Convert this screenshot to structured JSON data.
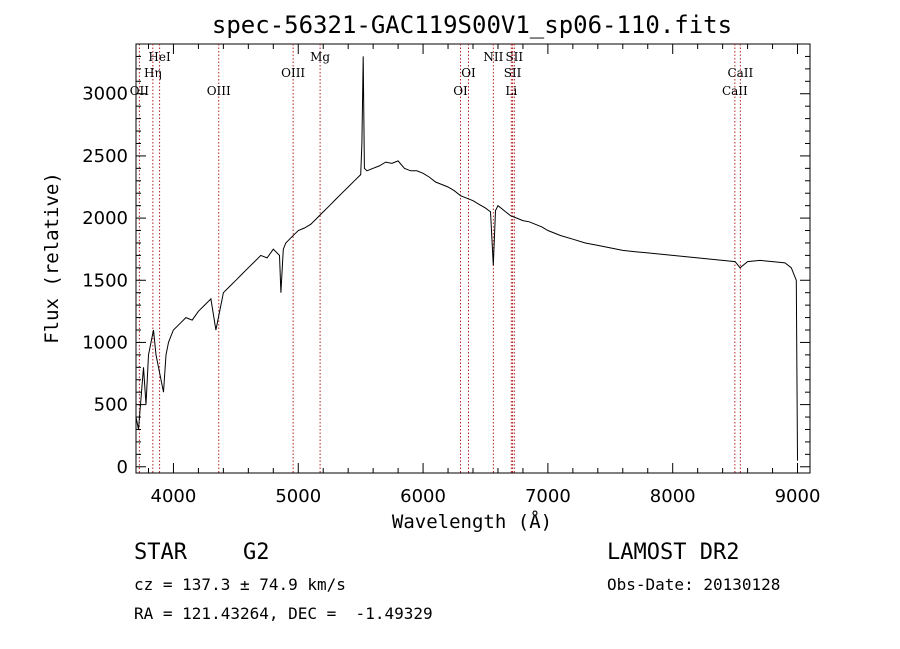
{
  "chart_data": {
    "type": "line",
    "title": "spec-56321-GAC119S00V1_sp06-110.fits",
    "xlabel": "Wavelength (Å)",
    "ylabel": "Flux (relative)",
    "xlim": [
      3700,
      9100
    ],
    "ylim": [
      -50,
      3400
    ],
    "x_ticks": [
      4000,
      5000,
      6000,
      7000,
      8000,
      9000
    ],
    "y_ticks": [
      0,
      500,
      1000,
      1500,
      2000,
      2500,
      3000
    ],
    "grid": false,
    "legend": "none",
    "series": [
      {
        "x": [
          3700,
          3720,
          3740,
          3760,
          3780,
          3800,
          3820,
          3840,
          3860,
          3880,
          3900,
          3920,
          3940,
          3960,
          3980,
          4000,
          4050,
          4100,
          4150,
          4200,
          4250,
          4300,
          4340,
          4380,
          4400,
          4450,
          4500,
          4550,
          4600,
          4650,
          4700,
          4750,
          4800,
          4850,
          4861,
          4880,
          4900,
          4950,
          5000,
          5050,
          5100,
          5150,
          5200,
          5250,
          5300,
          5350,
          5400,
          5450,
          5500,
          5510,
          5520,
          5530,
          5550,
          5600,
          5650,
          5700,
          5750,
          5800,
          5850,
          5900,
          5950,
          6000,
          6050,
          6100,
          6150,
          6200,
          6250,
          6300,
          6350,
          6400,
          6450,
          6500,
          6540,
          6563,
          6580,
          6600,
          6650,
          6700,
          6750,
          6800,
          6850,
          6900,
          6950,
          7000,
          7100,
          7200,
          7300,
          7400,
          7500,
          7600,
          7700,
          7800,
          7900,
          8000,
          8100,
          8200,
          8300,
          8400,
          8500,
          8540,
          8600,
          8700,
          8800,
          8900,
          8950,
          8990,
          9000
        ],
        "y": [
          400,
          300,
          550,
          800,
          500,
          900,
          1000,
          1100,
          900,
          800,
          700,
          600,
          900,
          1000,
          1050,
          1100,
          1150,
          1200,
          1180,
          1250,
          1300,
          1350,
          1100,
          1300,
          1400,
          1450,
          1500,
          1550,
          1600,
          1650,
          1700,
          1680,
          1750,
          1700,
          1400,
          1750,
          1800,
          1850,
          1900,
          1920,
          1950,
          2000,
          2050,
          2100,
          2150,
          2200,
          2250,
          2300,
          2350,
          2600,
          3300,
          2400,
          2380,
          2400,
          2420,
          2450,
          2440,
          2460,
          2400,
          2380,
          2380,
          2360,
          2330,
          2290,
          2270,
          2250,
          2220,
          2180,
          2160,
          2140,
          2110,
          2080,
          2050,
          1620,
          2060,
          2100,
          2060,
          2020,
          2000,
          1980,
          1970,
          1950,
          1930,
          1900,
          1860,
          1830,
          1800,
          1780,
          1760,
          1740,
          1730,
          1720,
          1710,
          1700,
          1690,
          1680,
          1670,
          1660,
          1650,
          1600,
          1650,
          1660,
          1650,
          1640,
          1600,
          1500,
          50
        ]
      }
    ],
    "reference_lines": [
      {
        "x": 3727,
        "label": "OII",
        "row": 3
      },
      {
        "x": 3835,
        "label": "Hη",
        "row": 2
      },
      {
        "x": 3889,
        "label": "HeI",
        "row": 1
      },
      {
        "x": 4363,
        "label": "OIII",
        "row": 3
      },
      {
        "x": 4959,
        "label": "OIII",
        "row": 2
      },
      {
        "x": 5175,
        "label": "Mg",
        "row": 1
      },
      {
        "x": 6300,
        "label": "OI",
        "row": 3
      },
      {
        "x": 6364,
        "label": "OI",
        "row": 2
      },
      {
        "x": 6563,
        "label": "NII",
        "row": 1
      },
      {
        "x": 6707,
        "label": "Li",
        "row": 3
      },
      {
        "x": 6717,
        "label": "SII",
        "row": 2
      },
      {
        "x": 6731,
        "label": "SII",
        "row": 1
      },
      {
        "x": 8498,
        "label": "CaII",
        "row": 3
      },
      {
        "x": 8542,
        "label": "CaII",
        "row": 2
      }
    ]
  },
  "info": {
    "object_class": "STAR",
    "subclass": "G2",
    "survey": "LAMOST DR2",
    "redshift": "cz = 137.3 ± 74.9 km/s",
    "obs_date": "Obs-Date: 20130128",
    "coordinates": "RA = 121.43264, DEC =  -1.49329"
  }
}
